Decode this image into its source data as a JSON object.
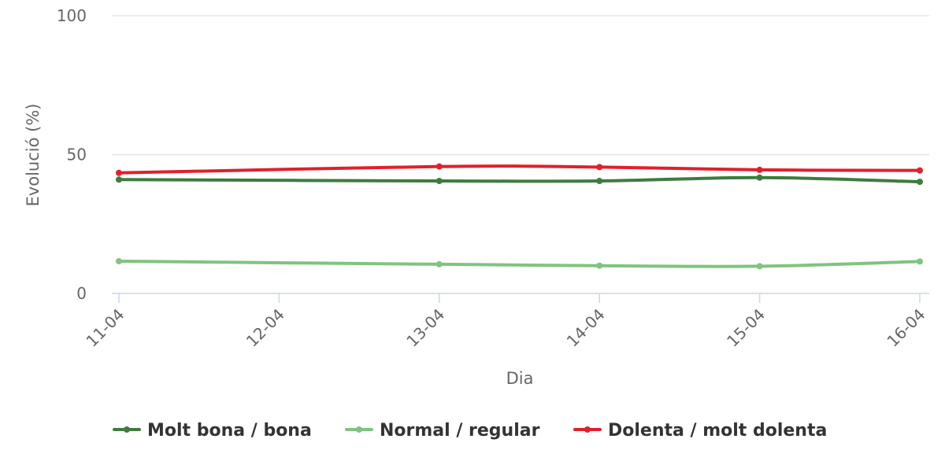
{
  "chart_data": {
    "type": "line",
    "xlabel": "Dia",
    "ylabel": "Evolució (%)",
    "ylim": [
      0,
      100
    ],
    "yticks": [
      0,
      50,
      100
    ],
    "categories": [
      "11-04",
      "12-04",
      "13-04",
      "14-04",
      "15-04",
      "16-04"
    ],
    "grid": true,
    "legend_position": "bottom",
    "series": [
      {
        "name": "Molt bona / bona",
        "color": "#3d7c3d",
        "values": [
          41,
          null,
          40.5,
          40.5,
          41.7,
          40.2
        ]
      },
      {
        "name": "Normal / regular",
        "color": "#7fc47f",
        "values": [
          11.6,
          null,
          10.5,
          10,
          9.8,
          11.5
        ]
      },
      {
        "name": "Dolenta / molt dolenta",
        "color": "#e0202e",
        "values": [
          43.4,
          null,
          45.7,
          45.5,
          44.5,
          44.3
        ]
      }
    ]
  }
}
